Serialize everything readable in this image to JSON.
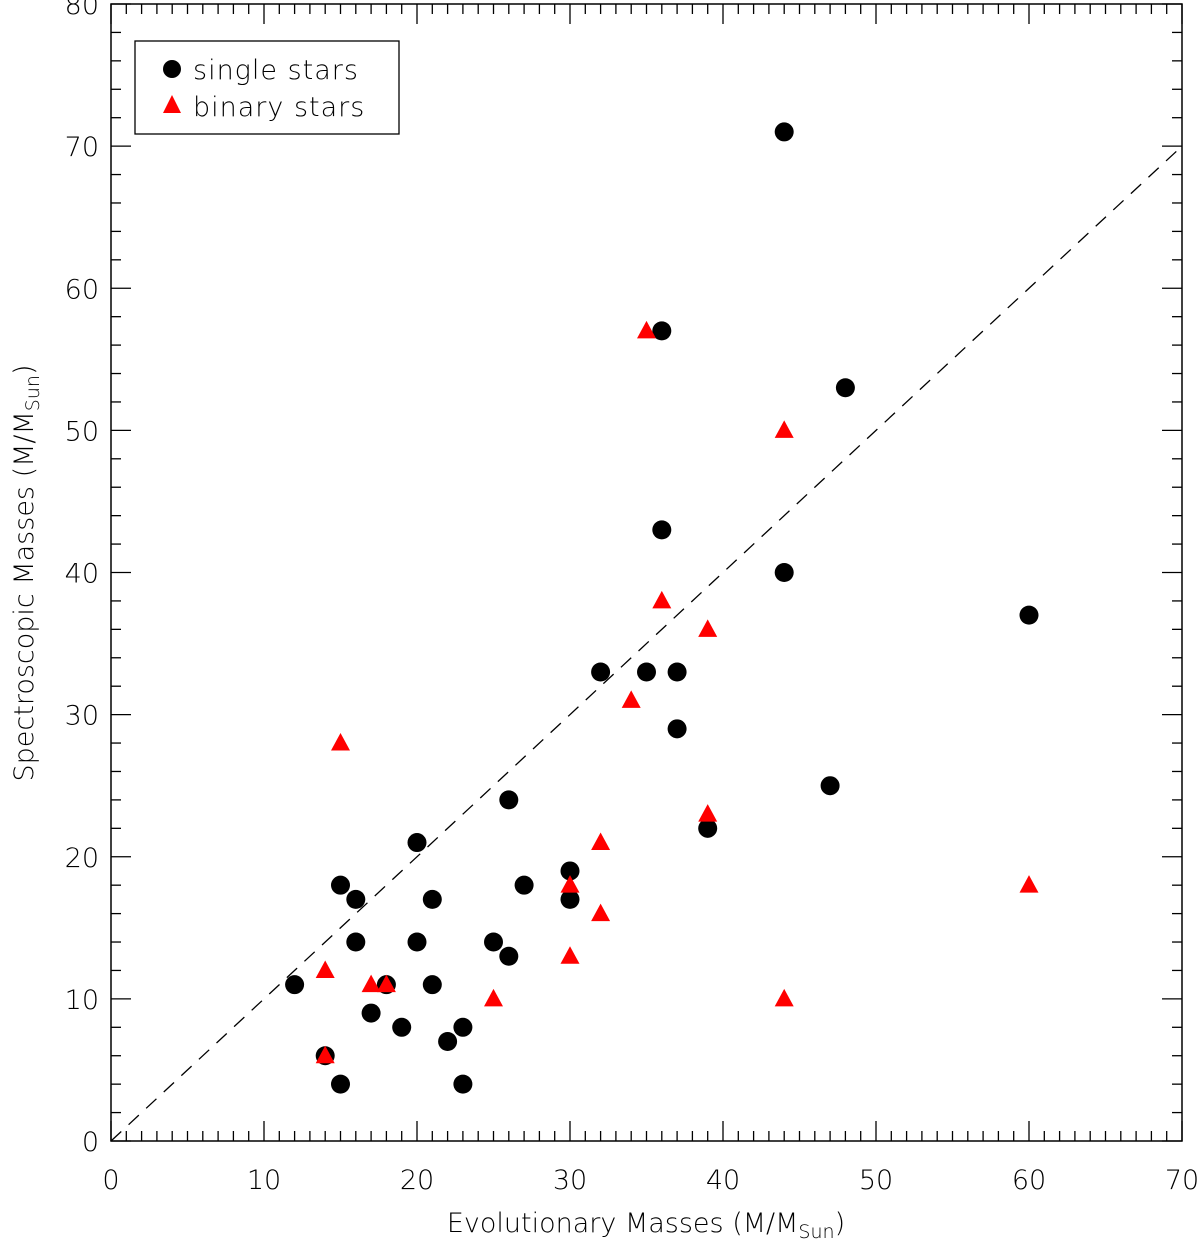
{
  "chart_data": {
    "type": "scatter",
    "xlabel": "Evolutionary Masses (M/M",
    "xlabel_sub": "Sun",
    "xlabel_end": ")",
    "ylabel": "Spectroscopic Masses (M/M",
    "ylabel_sub": "Sun",
    "ylabel_end": ")",
    "xlim": [
      0,
      70
    ],
    "ylim": [
      0,
      80
    ],
    "x_ticks": [
      0,
      10,
      20,
      30,
      40,
      50,
      60,
      70
    ],
    "y_ticks": [
      0,
      10,
      20,
      30,
      40,
      50,
      60,
      70,
      80
    ],
    "grid": false,
    "legend_position": "top-left",
    "reference_line": {
      "style": "dashed",
      "x": [
        0,
        70
      ],
      "y": [
        0,
        70
      ]
    },
    "series": [
      {
        "name": "single stars",
        "marker": "circle",
        "color": "#000000",
        "points": [
          [
            12,
            11
          ],
          [
            14,
            6
          ],
          [
            15,
            4
          ],
          [
            15,
            18
          ],
          [
            16,
            17
          ],
          [
            16,
            14
          ],
          [
            17,
            9
          ],
          [
            18,
            11
          ],
          [
            19,
            8
          ],
          [
            20,
            21
          ],
          [
            20,
            14
          ],
          [
            21,
            17
          ],
          [
            21,
            11
          ],
          [
            22,
            7
          ],
          [
            23,
            8
          ],
          [
            23,
            4
          ],
          [
            25,
            14
          ],
          [
            26,
            24
          ],
          [
            26,
            13
          ],
          [
            27,
            18
          ],
          [
            30,
            19
          ],
          [
            30,
            17
          ],
          [
            32,
            33
          ],
          [
            35,
            33
          ],
          [
            36,
            57
          ],
          [
            36,
            43
          ],
          [
            37,
            33
          ],
          [
            37,
            29
          ],
          [
            39,
            22
          ],
          [
            44,
            71
          ],
          [
            44,
            40
          ],
          [
            47,
            25
          ],
          [
            48,
            53
          ],
          [
            60,
            37
          ]
        ]
      },
      {
        "name": "binary stars",
        "marker": "triangle",
        "color": "#ff0000",
        "points": [
          [
            14,
            12
          ],
          [
            14,
            6
          ],
          [
            15,
            28
          ],
          [
            17,
            11
          ],
          [
            18,
            11
          ],
          [
            25,
            10
          ],
          [
            30,
            18
          ],
          [
            30,
            13
          ],
          [
            32,
            21
          ],
          [
            32,
            16
          ],
          [
            34,
            31
          ],
          [
            35,
            57
          ],
          [
            36,
            38
          ],
          [
            39,
            36
          ],
          [
            39,
            23
          ],
          [
            44,
            50
          ],
          [
            44,
            10
          ],
          [
            60,
            18
          ]
        ]
      }
    ]
  }
}
